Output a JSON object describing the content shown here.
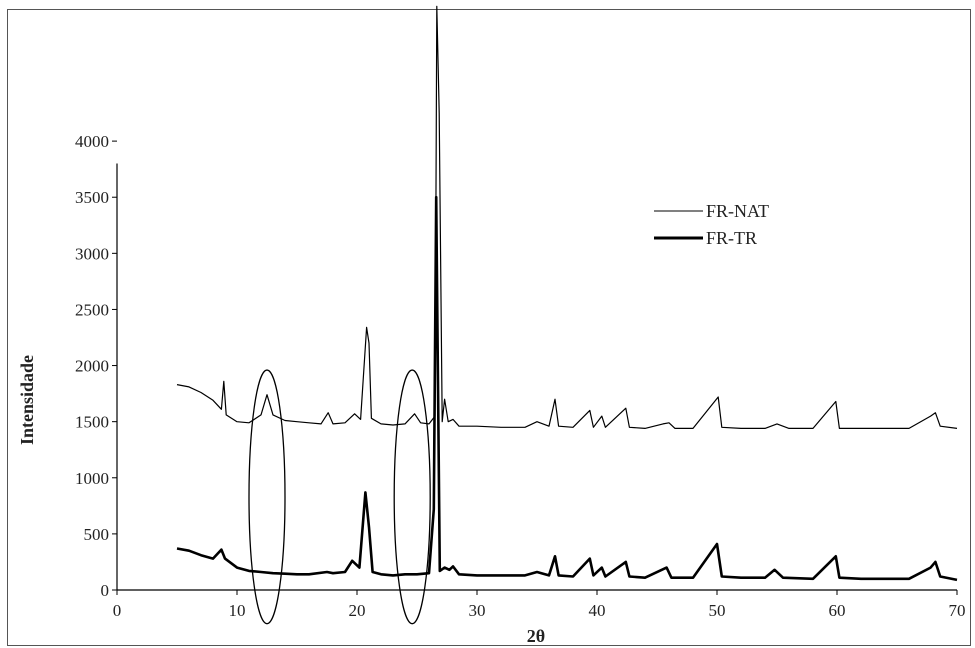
{
  "chart_data": {
    "type": "line",
    "title": "",
    "xlabel": "2θ",
    "ylabel": "Intensidade",
    "xlim": [
      0,
      70
    ],
    "ylim": [
      0,
      4500
    ],
    "xticks": [
      0,
      10,
      20,
      30,
      40,
      50,
      60,
      70
    ],
    "yticks": [
      0,
      500,
      1000,
      1500,
      2000,
      2500,
      3000,
      3500,
      4000
    ],
    "legend_position": "top-right",
    "grid": false,
    "series": [
      {
        "name": "FR-NAT",
        "style": "thin",
        "color": "#000000",
        "points": [
          [
            5.0,
            1830
          ],
          [
            6.0,
            1810
          ],
          [
            7.0,
            1760
          ],
          [
            8.0,
            1690
          ],
          [
            8.7,
            1610
          ],
          [
            8.9,
            1860
          ],
          [
            9.1,
            1560
          ],
          [
            10.0,
            1500
          ],
          [
            11.0,
            1490
          ],
          [
            12.0,
            1560
          ],
          [
            12.5,
            1740
          ],
          [
            13.0,
            1560
          ],
          [
            14.0,
            1510
          ],
          [
            15.0,
            1500
          ],
          [
            16.0,
            1490
          ],
          [
            17.0,
            1480
          ],
          [
            17.6,
            1580
          ],
          [
            18.0,
            1480
          ],
          [
            19.0,
            1490
          ],
          [
            19.8,
            1570
          ],
          [
            20.3,
            1520
          ],
          [
            20.8,
            2340
          ],
          [
            21.0,
            2200
          ],
          [
            21.2,
            1530
          ],
          [
            22.0,
            1480
          ],
          [
            23.0,
            1470
          ],
          [
            24.0,
            1480
          ],
          [
            24.8,
            1570
          ],
          [
            25.3,
            1490
          ],
          [
            26.0,
            1480
          ],
          [
            26.5,
            1550
          ],
          [
            26.65,
            5200
          ],
          [
            26.85,
            4250
          ],
          [
            27.1,
            1500
          ],
          [
            27.3,
            1700
          ],
          [
            27.6,
            1500
          ],
          [
            28.0,
            1520
          ],
          [
            28.5,
            1460
          ],
          [
            30.0,
            1460
          ],
          [
            32.0,
            1450
          ],
          [
            34.0,
            1450
          ],
          [
            35.0,
            1500
          ],
          [
            36.0,
            1460
          ],
          [
            36.5,
            1700
          ],
          [
            36.8,
            1460
          ],
          [
            38.0,
            1450
          ],
          [
            39.4,
            1600
          ],
          [
            39.7,
            1450
          ],
          [
            40.4,
            1550
          ],
          [
            40.7,
            1450
          ],
          [
            42.4,
            1620
          ],
          [
            42.7,
            1450
          ],
          [
            44.0,
            1440
          ],
          [
            45.5,
            1480
          ],
          [
            46.0,
            1490
          ],
          [
            46.5,
            1440
          ],
          [
            48.0,
            1440
          ],
          [
            50.1,
            1720
          ],
          [
            50.4,
            1450
          ],
          [
            52.0,
            1440
          ],
          [
            54.0,
            1440
          ],
          [
            55.0,
            1480
          ],
          [
            56.0,
            1440
          ],
          [
            58.0,
            1440
          ],
          [
            59.9,
            1680
          ],
          [
            60.2,
            1440
          ],
          [
            62.0,
            1440
          ],
          [
            64.0,
            1440
          ],
          [
            66.0,
            1440
          ],
          [
            67.8,
            1550
          ],
          [
            68.2,
            1580
          ],
          [
            68.6,
            1460
          ],
          [
            70.0,
            1440
          ]
        ]
      },
      {
        "name": "FR-TR",
        "style": "thick",
        "color": "#000000",
        "points": [
          [
            5.0,
            370
          ],
          [
            6.0,
            350
          ],
          [
            7.0,
            310
          ],
          [
            8.0,
            280
          ],
          [
            8.7,
            360
          ],
          [
            9.0,
            280
          ],
          [
            10.0,
            200
          ],
          [
            11.0,
            170
          ],
          [
            12.0,
            160
          ],
          [
            13.0,
            150
          ],
          [
            14.0,
            145
          ],
          [
            15.0,
            140
          ],
          [
            16.0,
            140
          ],
          [
            17.5,
            160
          ],
          [
            18.0,
            150
          ],
          [
            19.0,
            160
          ],
          [
            19.6,
            260
          ],
          [
            20.2,
            200
          ],
          [
            20.7,
            870
          ],
          [
            21.0,
            560
          ],
          [
            21.3,
            160
          ],
          [
            22.0,
            140
          ],
          [
            23.0,
            130
          ],
          [
            24.0,
            140
          ],
          [
            25.0,
            140
          ],
          [
            26.0,
            150
          ],
          [
            26.4,
            720
          ],
          [
            26.6,
            3500
          ],
          [
            26.9,
            170
          ],
          [
            27.3,
            200
          ],
          [
            27.7,
            180
          ],
          [
            28.0,
            210
          ],
          [
            28.5,
            140
          ],
          [
            30.0,
            130
          ],
          [
            32.0,
            130
          ],
          [
            34.0,
            130
          ],
          [
            35.0,
            160
          ],
          [
            36.0,
            130
          ],
          [
            36.5,
            300
          ],
          [
            36.8,
            130
          ],
          [
            38.0,
            120
          ],
          [
            39.4,
            280
          ],
          [
            39.7,
            130
          ],
          [
            40.4,
            200
          ],
          [
            40.7,
            120
          ],
          [
            42.4,
            250
          ],
          [
            42.7,
            120
          ],
          [
            44.0,
            110
          ],
          [
            45.8,
            200
          ],
          [
            46.2,
            110
          ],
          [
            48.0,
            110
          ],
          [
            50.0,
            410
          ],
          [
            50.4,
            120
          ],
          [
            52.0,
            110
          ],
          [
            54.0,
            110
          ],
          [
            54.8,
            180
          ],
          [
            55.5,
            110
          ],
          [
            58.0,
            100
          ],
          [
            59.9,
            300
          ],
          [
            60.2,
            110
          ],
          [
            62.0,
            100
          ],
          [
            64.0,
            100
          ],
          [
            66.0,
            100
          ],
          [
            67.8,
            200
          ],
          [
            68.2,
            250
          ],
          [
            68.6,
            120
          ],
          [
            70.0,
            90
          ]
        ]
      }
    ],
    "annotations": [
      {
        "type": "ellipse",
        "cx": 12.5,
        "cy": 830,
        "rx": 1.5,
        "ry": 1130
      },
      {
        "type": "ellipse",
        "cx": 24.6,
        "cy": 830,
        "rx": 1.5,
        "ry": 1130
      }
    ]
  }
}
